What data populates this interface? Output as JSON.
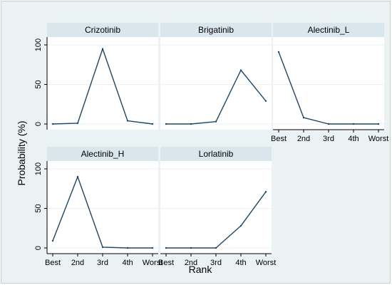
{
  "chart_data": {
    "type": "line",
    "xlabel": "Rank",
    "ylabel": "Probability (%)",
    "ylim": [
      0,
      100
    ],
    "yticks": [
      0,
      50,
      100
    ],
    "x": [
      "Best",
      "2nd",
      "3rd",
      "4th",
      "Worst"
    ],
    "grid": true,
    "line_color": "#1a476f",
    "strip_color": "#d9e6eb",
    "background_color": "#eaf2f3",
    "panels": [
      {
        "title": "Crizotinib",
        "values": [
          0,
          1,
          95,
          4,
          0
        ]
      },
      {
        "title": "Brigatinib",
        "values": [
          0,
          0,
          3,
          68,
          29
        ]
      },
      {
        "title": "Alectinib_L",
        "values": [
          91,
          8,
          0,
          0,
          0
        ]
      },
      {
        "title": "Alectinib_H",
        "values": [
          9,
          90,
          1,
          0,
          0
        ]
      },
      {
        "title": "Lorlatinib",
        "values": [
          0,
          0,
          0,
          28,
          71
        ]
      }
    ]
  }
}
